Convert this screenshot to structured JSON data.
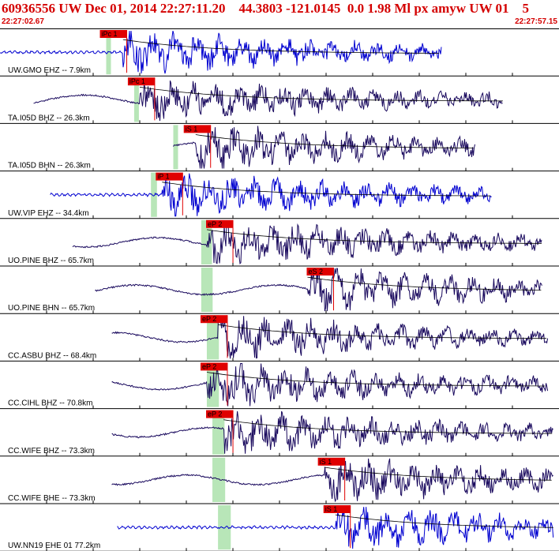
{
  "header": {
    "title": "60936556 UW Dec 01, 2014 22:27:11.20    44.3803 -121.0145  0.0 1.98 Ml px amyw UW 01    5",
    "time_start": "22:27:02.67",
    "time_end": "22:27:57.15"
  },
  "colors": {
    "pick_red": "#e00000",
    "pick_green": "#b8e6b8",
    "trace_blue": "#0000d0",
    "trace_dark": "#1a0a5e",
    "curve": "#000000"
  },
  "chart_data": {
    "type": "line",
    "title": "",
    "xlabel": "",
    "ylabel": "",
    "xlim": [
      "22:27:02.67",
      "22:27:57.15"
    ],
    "traces": [
      {
        "label": "UW.GMO EHZ -- 7.9km",
        "color": "blue",
        "start": 0.0,
        "end": 0.79,
        "onset": 0.22,
        "pick": "iPc 1",
        "pick_x": 0.19,
        "green": [
          0.19,
          0.21
        ]
      },
      {
        "label": "TA.I05D BHZ -- 26.3km",
        "color": "dark",
        "start": 0.06,
        "end": 0.9,
        "onset": 0.25,
        "pick": "iPc 1",
        "pick_x": 0.24,
        "green": [
          0.24,
          0.31
        ]
      },
      {
        "label": "TA.I05D BHN -- 26.3km",
        "color": "dark",
        "start": 0.31,
        "end": 0.85,
        "onset": 0.35,
        "pick": "iS 1",
        "pick_x": 0.34,
        "green": [
          0.31,
          0.34
        ]
      },
      {
        "label": "UW.VIP EHZ -- 34.4km",
        "color": "blue",
        "start": 0.09,
        "end": 0.88,
        "onset": 0.29,
        "pick": "iP 1",
        "pick_x": 0.29,
        "green": [
          0.27,
          0.36
        ]
      },
      {
        "label": "UO.PINE BHZ -- 65.7km",
        "color": "dark",
        "start": 0.13,
        "end": 0.97,
        "onset": 0.37,
        "pick": "eP 2",
        "pick_x": 0.38,
        "green": [
          0.36,
          0.52
        ]
      },
      {
        "label": "UO.PINE BHN -- 65.7km",
        "color": "dark",
        "start": 0.17,
        "end": 0.97,
        "onset": 0.55,
        "pick": "eS 2",
        "pick_x": 0.56,
        "green": [
          0.36,
          0.53
        ]
      },
      {
        "label": "CC.ASBU BHZ -- 68.4km",
        "color": "dark",
        "start": 0.2,
        "end": 0.98,
        "onset": 0.39,
        "pick": "eP 2",
        "pick_x": 0.37,
        "green": [
          0.37,
          0.55
        ]
      },
      {
        "label": "CC.CIHL BHZ -- 70.8km",
        "color": "dark",
        "start": 0.2,
        "end": 0.98,
        "onset": 0.37,
        "pick": "eP 2",
        "pick_x": 0.37,
        "green": [
          0.37,
          0.55
        ]
      },
      {
        "label": "CC.WIFE BHZ -- 73.3km",
        "color": "dark",
        "start": 0.2,
        "end": 0.99,
        "onset": 0.4,
        "pick": "eP 2",
        "pick_x": 0.38,
        "green": [
          0.38,
          0.56
        ]
      },
      {
        "label": "CC.WIFE BHE -- 73.3km",
        "color": "dark",
        "start": 0.2,
        "end": 0.99,
        "onset": 0.58,
        "pick": "iS 1",
        "pick_x": 0.58,
        "green": [
          0.38,
          0.57
        ]
      },
      {
        "label": "UW.NN19 EHE 01 77.2km",
        "color": "blue",
        "start": 0.21,
        "end": 0.99,
        "onset": 0.6,
        "pick": "iS 1",
        "pick_x": 0.59,
        "green": [
          0.39,
          0.58
        ]
      }
    ]
  }
}
